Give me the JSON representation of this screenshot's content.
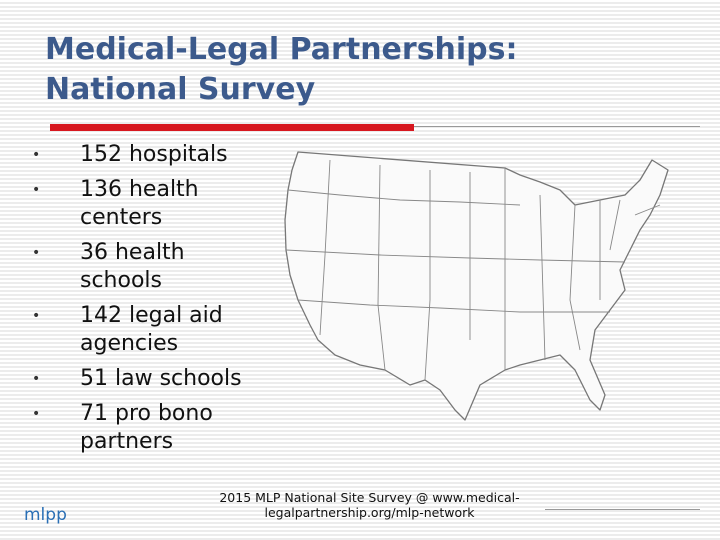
{
  "header": {
    "title_lines": [
      "Medical-Legal Partnerships:",
      "National Survey"
    ]
  },
  "bullets": [
    "152 hospitals",
    "136 health centers",
    "36 health schools",
    "142 legal aid agencies",
    "51 law schools",
    "71 pro bono partners"
  ],
  "footer": {
    "source": "2015 MLP National Site Survey @ www.medical-legalpartnership.org/mlp-network",
    "logo": "mlpp"
  }
}
